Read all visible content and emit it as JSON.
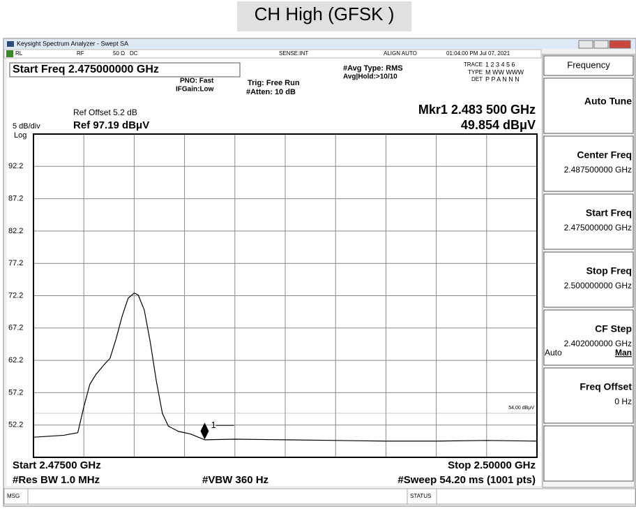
{
  "title": "CH High (GFSK )",
  "window": {
    "title": "Keysight Spectrum Analyzer - Swept SA"
  },
  "status_line": [
    "RL",
    "RF",
    "50 Ω",
    "DC",
    "SENSE:INT",
    "ALIGN AUTO",
    "01:04:00 PM Jul 07, 2021"
  ],
  "settings": {
    "active_function": "Start Freq 2.475000000 GHz",
    "pno": "PNO: Fast",
    "if_gain": "IFGain:Low",
    "trig": "Trig: Free Run",
    "atten": "#Atten: 10 dB",
    "avg_type": "#Avg Type: RMS",
    "avg_hold": "Avg|Hold:>10/10",
    "trace_label": "TRACE",
    "trace": "1 2 3 4 5 6",
    "type_label": "TYPE",
    "type": "M WW WWW",
    "det_label": "DET",
    "det": "P P A N N N"
  },
  "chart_data": {
    "type": "line",
    "ref_offset": "Ref Offset 5.2 dB",
    "scale": "5 dB/div",
    "ref_level": "Ref 97.19 dBμV",
    "scale_type": "Log",
    "marker_readout": "Mkr1 2.483 500 GHz",
    "marker_value": "49.854 dBμV",
    "start": "Start 2.47500 GHz",
    "stop": "Stop 2.50000 GHz",
    "rbw": "#Res BW 1.0 MHz",
    "vbw": "#VBW 360 Hz",
    "sweep": "#Sweep  54.20 ms (1001 pts)",
    "x": [
      2.475,
      2.4765,
      2.4772,
      2.4775,
      2.4778,
      2.4781,
      2.4785,
      2.4788,
      2.4791,
      2.4794,
      2.4797,
      2.48,
      2.4802,
      2.4805,
      2.4808,
      2.4811,
      2.4814,
      2.4817,
      2.4822,
      2.4828,
      2.4835,
      2.485,
      2.4875,
      2.49,
      2.4925,
      2.495,
      2.4975,
      2.5
    ],
    "values": [
      50.3,
      50.6,
      51.0,
      55.0,
      58.5,
      60.0,
      61.5,
      62.5,
      65.5,
      69.0,
      71.8,
      72.6,
      72.3,
      70.0,
      65.0,
      59.0,
      54.0,
      52.0,
      51.2,
      50.8,
      49.9,
      50.0,
      49.9,
      49.8,
      49.7,
      49.7,
      49.8,
      49.7
    ],
    "color": "#000000",
    "xlim": [
      2.475,
      2.5
    ],
    "ylim": [
      47.19,
      97.19
    ],
    "yticks": [
      {
        "value": 92.19,
        "label": "92.2"
      },
      {
        "value": 87.19,
        "label": "87.2"
      },
      {
        "value": 82.19,
        "label": "82.2"
      },
      {
        "value": 77.19,
        "label": "77.2"
      },
      {
        "value": 72.19,
        "label": "72.2"
      },
      {
        "value": 67.19,
        "label": "67.2"
      },
      {
        "value": 62.19,
        "label": "62.2"
      },
      {
        "value": 57.19,
        "label": "57.2"
      },
      {
        "value": 52.19,
        "label": "52.2"
      }
    ],
    "grid": true,
    "marker": {
      "label": "1",
      "x": 2.4835,
      "y": 49.854
    },
    "display_line": {
      "value": 54,
      "label": "54.00 dBμV"
    }
  },
  "softkeys": {
    "menu": "Frequency",
    "keys": [
      {
        "label": "Auto Tune"
      },
      {
        "label": "Center Freq",
        "value": "2.487500000 GHz"
      },
      {
        "label": "Start Freq",
        "value": "2.475000000 GHz"
      },
      {
        "label": "Stop Freq",
        "value": "2.500000000 GHz"
      },
      {
        "label": "CF Step",
        "value": "2.402000000 GHz",
        "options": [
          "Auto",
          "Man"
        ]
      },
      {
        "label": "Freq Offset",
        "value": "0 Hz"
      }
    ]
  },
  "status_bar": {
    "msg": "MSG",
    "status": "STATUS"
  }
}
